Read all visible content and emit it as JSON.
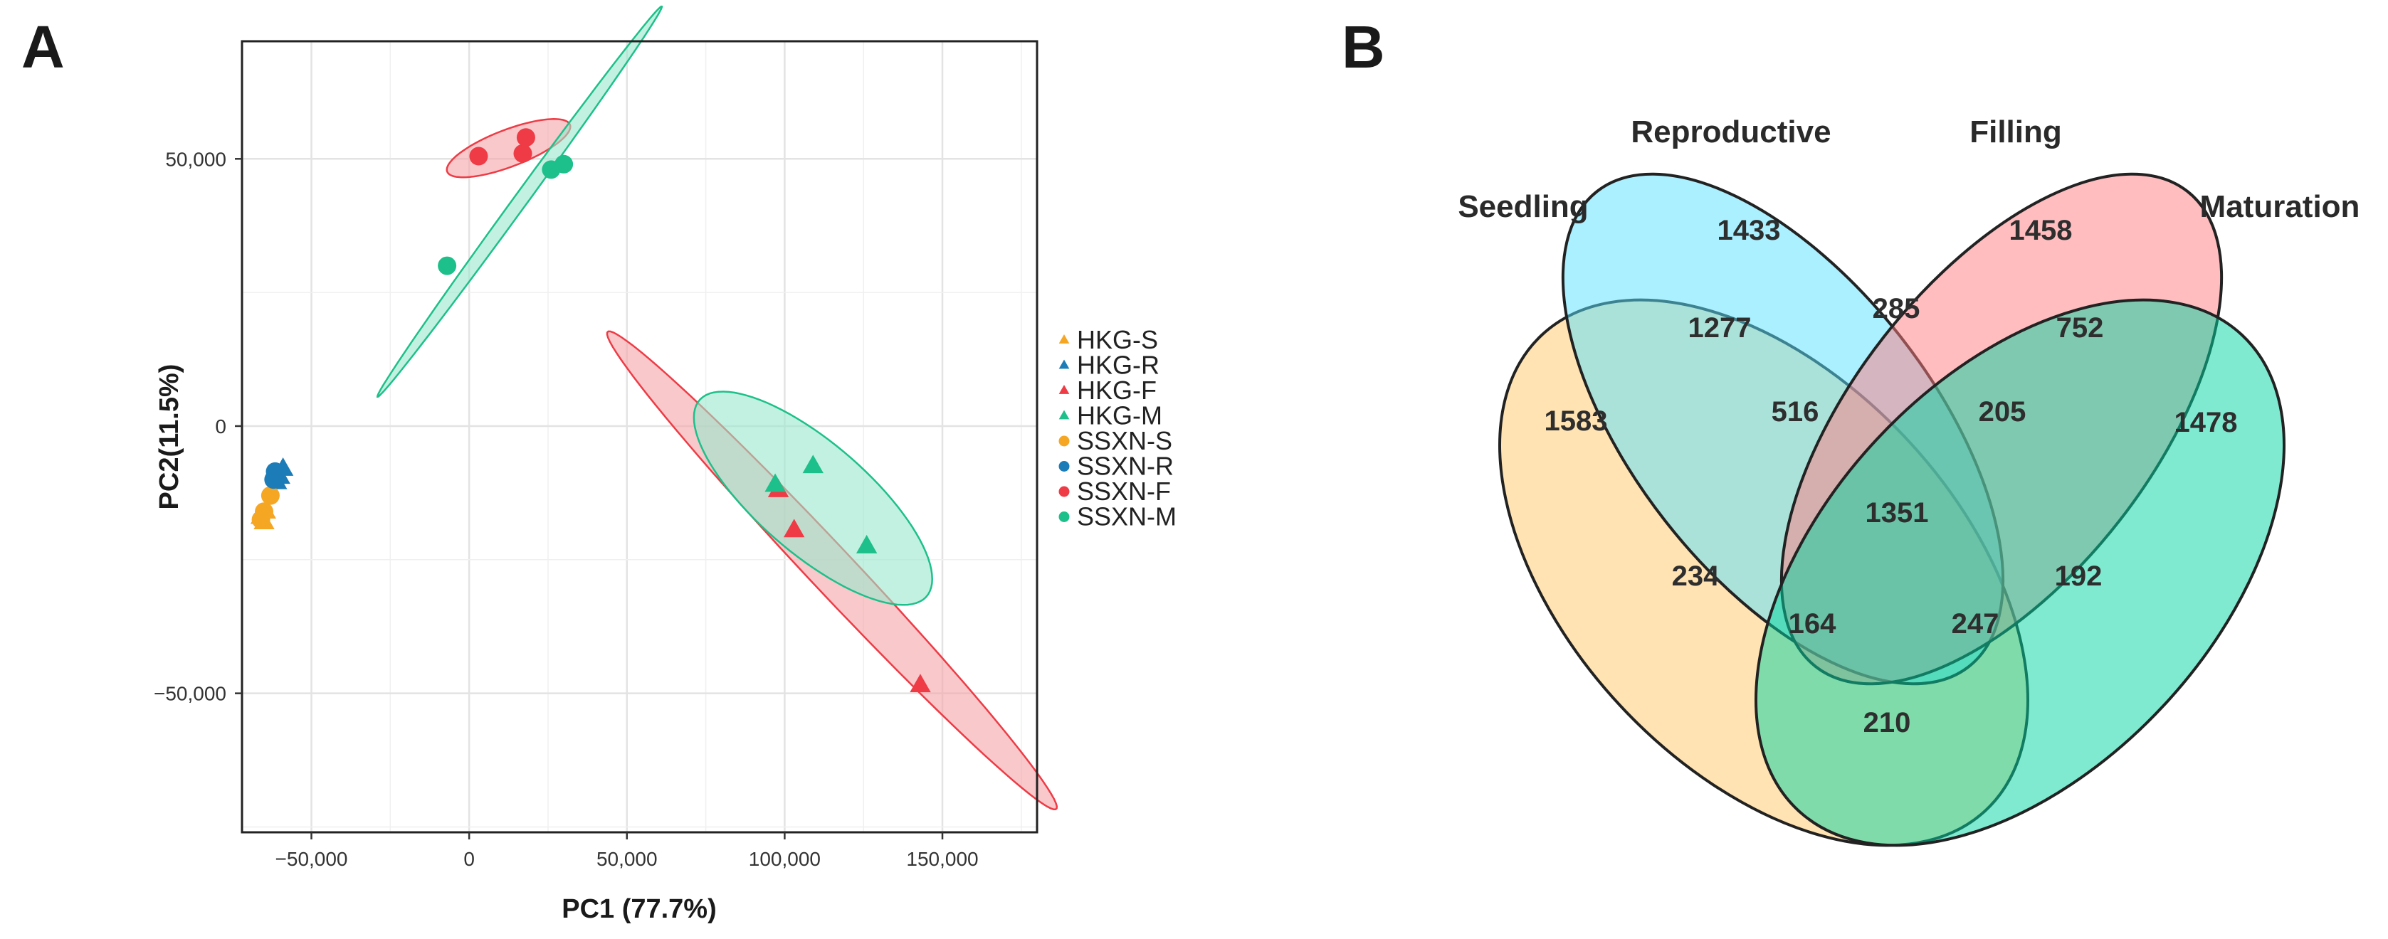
{
  "panels": {
    "a_label": "A",
    "b_label": "B"
  },
  "chart_data": [
    {
      "type": "scatter",
      "title": "",
      "xlabel": "PC1 (77.7%)",
      "ylabel": "PC2(11.5%)",
      "xlim": [
        -72000,
        180000
      ],
      "ylim": [
        -76000,
        72000
      ],
      "x_ticks": [
        {
          "value": -50000,
          "label": "−50,000"
        },
        {
          "value": 0,
          "label": "0"
        },
        {
          "value": 50000,
          "label": "50,000"
        },
        {
          "value": 100000,
          "label": "100,000"
        },
        {
          "value": 150000,
          "label": "150,000"
        }
      ],
      "y_ticks": [
        {
          "value": -50000,
          "label": "−50,000"
        },
        {
          "value": 0,
          "label": "0"
        },
        {
          "value": 50000,
          "label": "50,000"
        }
      ],
      "grid": true,
      "legend_position": "right",
      "series": [
        {
          "name": "HKG-S",
          "shape": "triangle",
          "color": "#F5A623",
          "points": [
            [
              -65000,
              -18000
            ],
            [
              -66000,
              -17000
            ],
            [
              -64500,
              -16000
            ]
          ],
          "ellipse": null
        },
        {
          "name": "HKG-R",
          "shape": "triangle",
          "color": "#1B7CB8",
          "points": [
            [
              -59000,
              -8000
            ],
            [
              -60000,
              -9500
            ],
            [
              -61000,
              -10500
            ]
          ],
          "ellipse": null
        },
        {
          "name": "HKG-F",
          "shape": "triangle",
          "color": "#EE3B45",
          "points": [
            [
              98000,
              -12000
            ],
            [
              103000,
              -19500
            ],
            [
              143000,
              -48500
            ]
          ],
          "ellipse": {
            "cx": 115000,
            "cy": -27000,
            "rx": 84000,
            "ry": 5200,
            "angle": -32,
            "fill": "#F4A3A8",
            "stroke": "#EE3B45"
          }
        },
        {
          "name": "HKG-M",
          "shape": "triangle",
          "color": "#1DC08A",
          "points": [
            [
              97000,
              -11000
            ],
            [
              109000,
              -7500
            ],
            [
              126000,
              -22500
            ]
          ],
          "ellipse": {
            "cx": 109000,
            "cy": -13500,
            "rx": 41000,
            "ry": 12000,
            "angle": -24,
            "fill": "#9BE8CD",
            "stroke": "#1DC08A"
          }
        },
        {
          "name": "SSXN-S",
          "shape": "circle",
          "color": "#F5A623",
          "points": [
            [
              -63000,
              -13000
            ],
            [
              -65000,
              -16000
            ],
            [
              -66000,
              -17500
            ]
          ],
          "ellipse": null
        },
        {
          "name": "SSXN-R",
          "shape": "circle",
          "color": "#1B7CB8",
          "points": [
            [
              -61000,
              -9000
            ],
            [
              -62000,
              -10000
            ],
            [
              -61500,
              -8500
            ]
          ],
          "ellipse": null
        },
        {
          "name": "SSXN-F",
          "shape": "circle",
          "color": "#EE3B45",
          "points": [
            [
              3000,
              50500
            ],
            [
              17000,
              51000
            ],
            [
              18000,
              54000
            ]
          ],
          "ellipse": {
            "cx": 12500,
            "cy": 52000,
            "rx": 20000,
            "ry": 3600,
            "angle": 12,
            "fill": "#F4A3A8",
            "stroke": "#EE3B45"
          }
        },
        {
          "name": "SSXN-M",
          "shape": "circle",
          "color": "#1DC08A",
          "points": [
            [
              -7000,
              30000
            ],
            [
              26000,
              48000
            ],
            [
              30000,
              49000
            ]
          ],
          "ellipse": {
            "cx": 16000,
            "cy": 42000,
            "rx": 58000,
            "ry": 1700,
            "angle": 39,
            "fill": "#9BE8CD",
            "stroke": "#1DC08A"
          }
        }
      ]
    },
    {
      "type": "venn",
      "sets": [
        {
          "name": "Seedling",
          "color": "#FFC766"
        },
        {
          "name": "Reproductive",
          "color": "#56E2FF"
        },
        {
          "name": "Filling",
          "color": "#FF7C82"
        },
        {
          "name": "Maturation",
          "color": "#00D6A2"
        }
      ],
      "regions": [
        {
          "sets": [
            "Seedling"
          ],
          "value": 1583
        },
        {
          "sets": [
            "Reproductive"
          ],
          "value": 1433
        },
        {
          "sets": [
            "Filling"
          ],
          "value": 1458
        },
        {
          "sets": [
            "Maturation"
          ],
          "value": 1478
        },
        {
          "sets": [
            "Seedling",
            "Reproductive"
          ],
          "value": 1277
        },
        {
          "sets": [
            "Reproductive",
            "Filling"
          ],
          "value": 285
        },
        {
          "sets": [
            "Filling",
            "Maturation"
          ],
          "value": 752
        },
        {
          "sets": [
            "Seedling",
            "Filling"
          ],
          "value": 234
        },
        {
          "sets": [
            "Reproductive",
            "Maturation"
          ],
          "value": 192
        },
        {
          "sets": [
            "Seedling",
            "Maturation"
          ],
          "value": 210
        },
        {
          "sets": [
            "Seedling",
            "Reproductive",
            "Filling"
          ],
          "value": 516
        },
        {
          "sets": [
            "Reproductive",
            "Filling",
            "Maturation"
          ],
          "value": 205
        },
        {
          "sets": [
            "Seedling",
            "Filling",
            "Maturation"
          ],
          "value": 164
        },
        {
          "sets": [
            "Seedling",
            "Reproductive",
            "Maturation"
          ],
          "value": 247
        },
        {
          "sets": [
            "Seedling",
            "Reproductive",
            "Filling",
            "Maturation"
          ],
          "value": 1351
        }
      ]
    }
  ]
}
